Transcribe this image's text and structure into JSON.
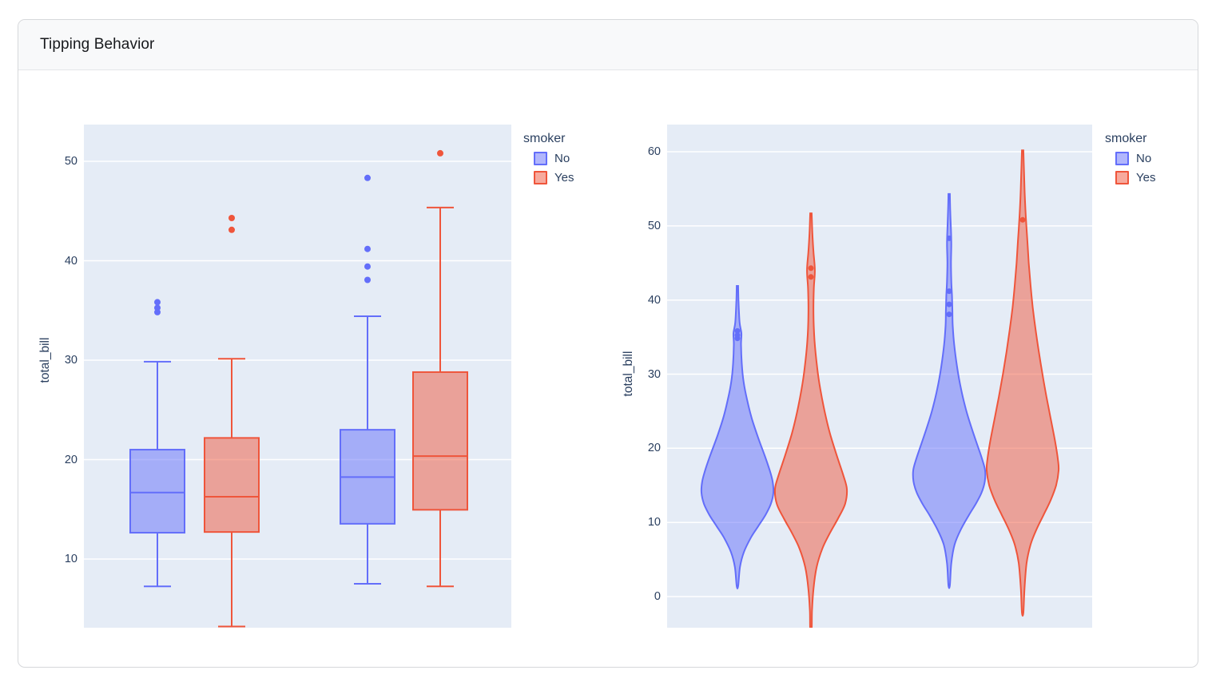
{
  "page": {
    "title": "Tipping Behavior"
  },
  "colors": {
    "plot_bg": "#E5ECF6",
    "grid": "#FFFFFF",
    "axis_text": "#2a3f5f",
    "series": {
      "No": {
        "line": "#636EFA",
        "fill": "rgba(99,110,250,0.5)"
      },
      "Yes": {
        "line": "#EF553B",
        "fill": "rgba(239,85,59,0.5)"
      }
    }
  },
  "legend": {
    "title": "smoker",
    "items": [
      {
        "label": "No",
        "series": "No"
      },
      {
        "label": "Yes",
        "series": "Yes"
      }
    ]
  },
  "chart_data": [
    {
      "type": "box",
      "title": "",
      "xlabel": "",
      "ylabel": "total_bill",
      "yticks": [
        10,
        20,
        30,
        40,
        50
      ],
      "ylim": [
        3.0,
        53.7
      ],
      "grid": true,
      "legend_position": "right",
      "legend_title": "smoker",
      "categories": [
        "",
        ""
      ],
      "boxes": [
        {
          "series": "No",
          "group": 0,
          "low": 7.25,
          "q1": 12.65,
          "median": 16.69,
          "q3": 21.0,
          "high": 29.85,
          "outliers": [
            34.83,
            35.26,
            35.83
          ]
        },
        {
          "series": "Yes",
          "group": 0,
          "low": 3.07,
          "q1": 12.72,
          "median": 16.27,
          "q3": 22.18,
          "high": 30.14,
          "outliers": [
            43.11,
            44.3
          ]
        },
        {
          "series": "No",
          "group": 1,
          "low": 7.51,
          "q1": 13.55,
          "median": 18.24,
          "q3": 23.0,
          "high": 34.42,
          "outliers": [
            38.07,
            39.42,
            41.19,
            48.33
          ]
        },
        {
          "series": "Yes",
          "group": 1,
          "low": 7.25,
          "q1": 14.95,
          "median": 20.35,
          "q3": 28.8,
          "high": 45.35,
          "outliers": [
            50.81
          ]
        }
      ]
    },
    {
      "type": "violin",
      "title": "",
      "xlabel": "",
      "ylabel": "total_bill",
      "yticks": [
        0,
        10,
        20,
        30,
        40,
        50,
        60
      ],
      "ylim": [
        -4.2,
        63.7
      ],
      "grid": true,
      "legend_position": "right",
      "legend_title": "smoker",
      "categories": [
        "",
        ""
      ],
      "violins": [
        {
          "series": "No",
          "group": 0,
          "span": [
            1.4,
            41.9
          ],
          "points": [
            34.83,
            35.26,
            35.83
          ],
          "profile": [
            [
              41.9,
              0.02
            ],
            [
              40,
              0.03
            ],
            [
              37,
              0.06
            ],
            [
              35.5,
              0.11
            ],
            [
              34,
              0.1
            ],
            [
              31.5,
              0.12
            ],
            [
              29,
              0.17
            ],
            [
              26.5,
              0.27
            ],
            [
              24,
              0.4
            ],
            [
              21.5,
              0.57
            ],
            [
              19,
              0.76
            ],
            [
              17,
              0.9
            ],
            [
              15.5,
              0.98
            ],
            [
              14,
              1.0
            ],
            [
              12.5,
              0.93
            ],
            [
              11,
              0.78
            ],
            [
              9.5,
              0.58
            ],
            [
              8,
              0.38
            ],
            [
              6,
              0.18
            ],
            [
              4,
              0.07
            ],
            [
              1.4,
              0.02
            ]
          ]
        },
        {
          "series": "Yes",
          "group": 0,
          "span": [
            -4.4,
            51.7
          ],
          "points": [
            43.11,
            44.3
          ],
          "profile": [
            [
              51.7,
              0.02
            ],
            [
              49,
              0.04
            ],
            [
              46.5,
              0.07
            ],
            [
              44,
              0.11
            ],
            [
              41.5,
              0.08
            ],
            [
              38,
              0.07
            ],
            [
              34.5,
              0.1
            ],
            [
              31,
              0.17
            ],
            [
              28,
              0.26
            ],
            [
              25,
              0.38
            ],
            [
              22,
              0.53
            ],
            [
              19,
              0.72
            ],
            [
              16.5,
              0.89
            ],
            [
              14.5,
              1.0
            ],
            [
              12.5,
              0.95
            ],
            [
              10.5,
              0.75
            ],
            [
              8.5,
              0.52
            ],
            [
              6.5,
              0.32
            ],
            [
              4,
              0.16
            ],
            [
              1,
              0.07
            ],
            [
              -2,
              0.03
            ],
            [
              -4.4,
              0.02
            ]
          ]
        },
        {
          "series": "No",
          "group": 1,
          "span": [
            1.5,
            54.3
          ],
          "points": [
            38.07,
            39.42,
            41.19,
            48.33
          ],
          "profile": [
            [
              54.3,
              0.02
            ],
            [
              52,
              0.03
            ],
            [
              49.5,
              0.05
            ],
            [
              47.5,
              0.06
            ],
            [
              45,
              0.05
            ],
            [
              42.5,
              0.06
            ],
            [
              40.5,
              0.08
            ],
            [
              38.5,
              0.09
            ],
            [
              36.5,
              0.1
            ],
            [
              34,
              0.14
            ],
            [
              31,
              0.22
            ],
            [
              28,
              0.33
            ],
            [
              25,
              0.48
            ],
            [
              22.5,
              0.64
            ],
            [
              20.5,
              0.78
            ],
            [
              18.5,
              0.92
            ],
            [
              17,
              1.0
            ],
            [
              15.5,
              0.99
            ],
            [
              14,
              0.9
            ],
            [
              12.5,
              0.74
            ],
            [
              11,
              0.55
            ],
            [
              9,
              0.32
            ],
            [
              7,
              0.15
            ],
            [
              4.5,
              0.06
            ],
            [
              1.5,
              0.02
            ]
          ]
        },
        {
          "series": "Yes",
          "group": 1,
          "span": [
            -2.2,
            60.2
          ],
          "points": [
            50.81
          ],
          "profile": [
            [
              60.2,
              0.02
            ],
            [
              57,
              0.04
            ],
            [
              54,
              0.06
            ],
            [
              51,
              0.09
            ],
            [
              48,
              0.13
            ],
            [
              45,
              0.17
            ],
            [
              42,
              0.22
            ],
            [
              39,
              0.28
            ],
            [
              36,
              0.36
            ],
            [
              33,
              0.45
            ],
            [
              30,
              0.55
            ],
            [
              27,
              0.66
            ],
            [
              24,
              0.78
            ],
            [
              21,
              0.9
            ],
            [
              18.5,
              0.98
            ],
            [
              17,
              1.0
            ],
            [
              15,
              0.93
            ],
            [
              13,
              0.78
            ],
            [
              11,
              0.58
            ],
            [
              9,
              0.38
            ],
            [
              7,
              0.22
            ],
            [
              4.5,
              0.11
            ],
            [
              1,
              0.05
            ],
            [
              -2.2,
              0.02
            ]
          ]
        }
      ]
    }
  ]
}
